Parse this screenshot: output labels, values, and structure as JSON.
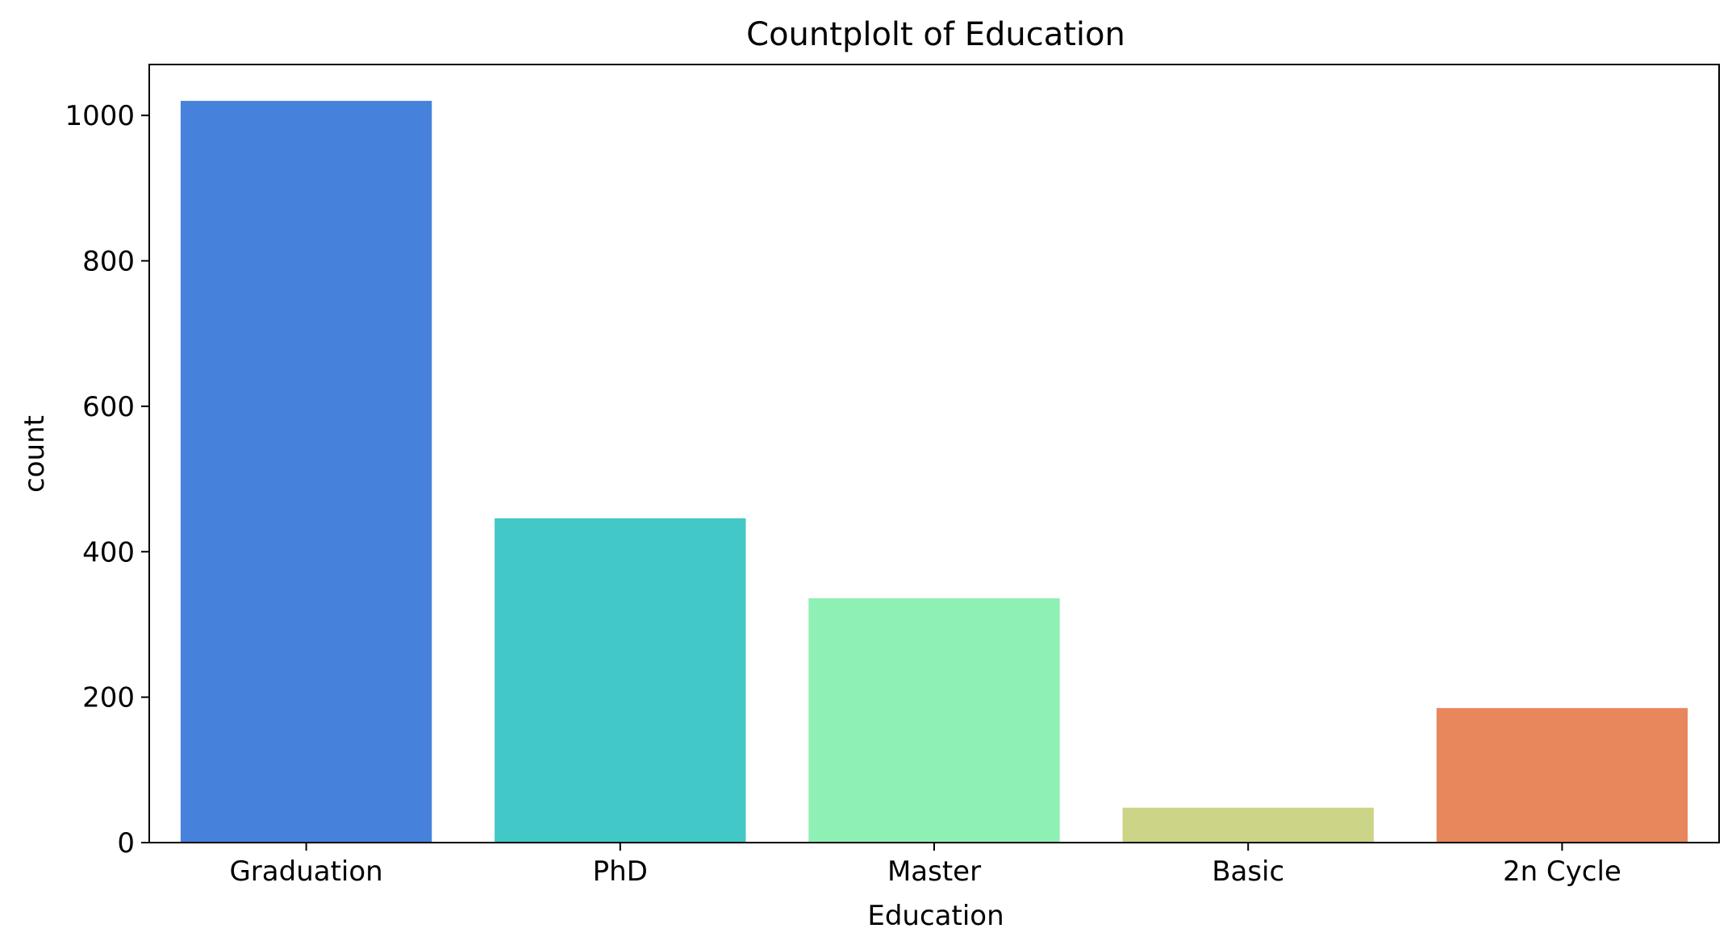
{
  "chart_data": {
    "type": "bar",
    "title": "Countplolt of Education",
    "xlabel": "Education",
    "ylabel": "count",
    "categories": [
      "Graduation",
      "PhD",
      "Master",
      "Basic",
      "2n Cycle"
    ],
    "values": [
      1020,
      446,
      336,
      48,
      185
    ],
    "colors": [
      "#4682dc",
      "#43c8c8",
      "#8ff0b4",
      "#cbd487",
      "#e8875b"
    ],
    "ylim": [
      0,
      1070
    ],
    "yticks": [
      0,
      200,
      400,
      600,
      800,
      1000
    ],
    "grid": false,
    "legend": "none"
  }
}
